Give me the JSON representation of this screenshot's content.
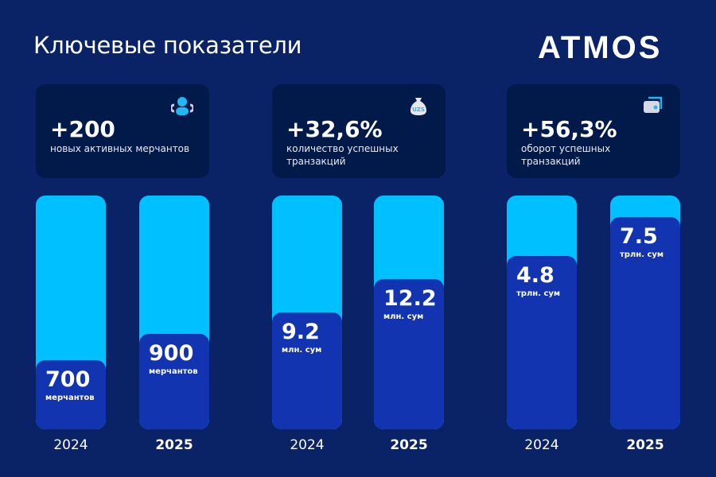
{
  "header": {
    "title": "Ключевые показатели",
    "logo": "ATMOS"
  },
  "colors": {
    "background": "#0a2366",
    "card": "#021a4a",
    "bar_track": "#00c0ff",
    "bar_fill": "#1234b0"
  },
  "cards": [
    {
      "value": "+200",
      "label": "новых активных мерчантов",
      "icon": "users-icon"
    },
    {
      "value": "+32,6%",
      "label": "количество  успешных транзакций",
      "icon": "money-bag-uzs-icon"
    },
    {
      "value": "+56,3%",
      "label": "оборот успешных транзакций",
      "icon": "wallet-icon"
    }
  ],
  "chart_data": [
    {
      "type": "bar",
      "categories": [
        "2024",
        "2025"
      ],
      "values": [
        700,
        900
      ],
      "unit": "мерчантов",
      "labels": [
        "700",
        "900"
      ]
    },
    {
      "type": "bar",
      "categories": [
        "2024",
        "2025"
      ],
      "values": [
        9.2,
        12.2
      ],
      "unit": "млн. сум",
      "labels": [
        "9.2",
        "12.2"
      ]
    },
    {
      "type": "bar",
      "categories": [
        "2024",
        "2025"
      ],
      "values": [
        4.8,
        7.5
      ],
      "unit": "трлн. сум",
      "labels": [
        "4.8",
        "7.5"
      ]
    }
  ]
}
